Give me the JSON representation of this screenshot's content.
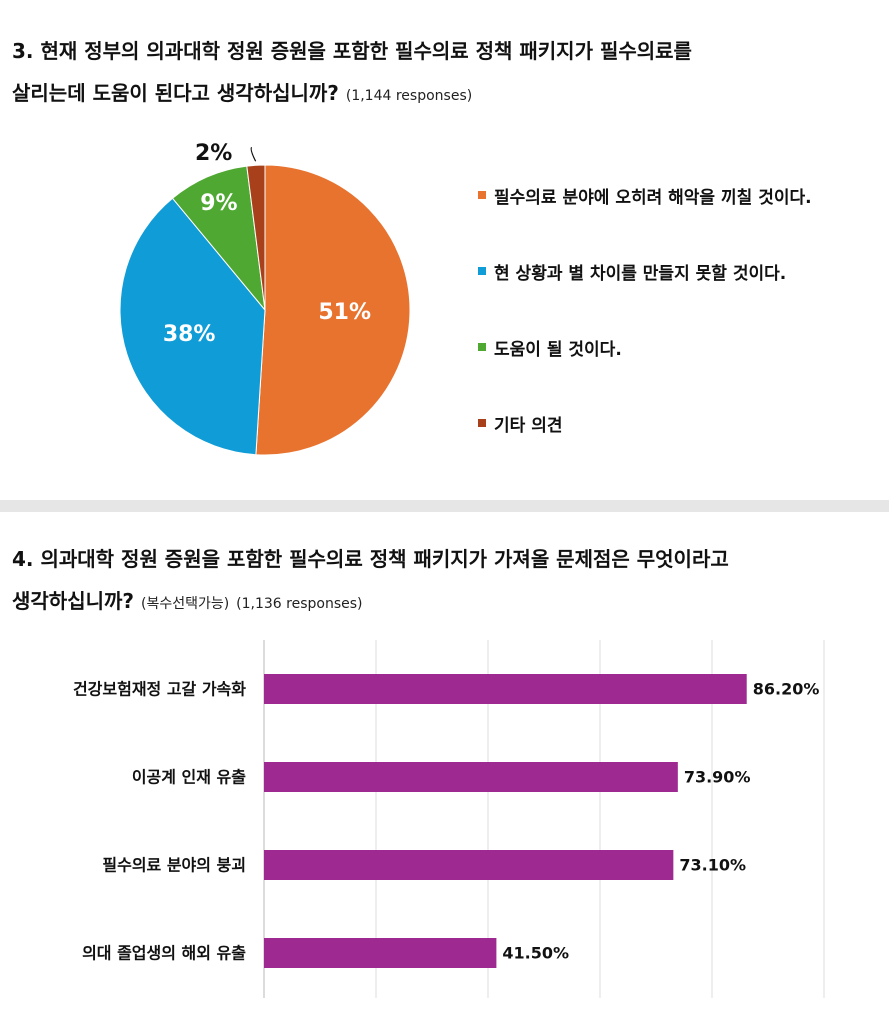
{
  "q3": {
    "title_line1": "3. 현재 정부의 의과대학 정원 증원을 포함한 필수의료 정책 패키지가 필수의료를",
    "title_line2": "살리는데 도움이 된다고 생각하십니까?",
    "responses": "(1,144 responses)"
  },
  "q4": {
    "title_line1": "4. 의과대학 정원 증원을 포함한 필수의료 정책 패키지가 가져올 문제점은 무엇이라고",
    "title_line2": "생각하십니까?",
    "note": "(복수선택가능)",
    "responses": "(1,136 responses)"
  },
  "chart_data": [
    {
      "type": "pie",
      "labels": [
        "필수의료 분야에 오히려 해악을 끼칠 것이다.",
        "현 상황과 별 차이를 만들지 못할 것이다.",
        "도움이 될 것이다.",
        "기타 의견"
      ],
      "values": [
        51,
        38,
        9,
        2
      ],
      "value_labels": [
        "51%",
        "38%",
        "9%",
        "2%"
      ],
      "colors": [
        "#E8732F",
        "#109CD6",
        "#4FA832",
        "#A8401C"
      ],
      "legend_position": "right"
    },
    {
      "type": "bar",
      "orientation": "horizontal",
      "categories": [
        "건강보험재정 고갈 가속화",
        "이공계 인재 유출",
        "필수의료 분야의 붕괴",
        "의대 졸업생의 해외 유출"
      ],
      "values": [
        86.2,
        73.9,
        73.1,
        41.5
      ],
      "value_labels": [
        "86.20%",
        "73.90%",
        "73.10%",
        "41.50%"
      ],
      "color": "#9E2A91",
      "grid": true
    }
  ]
}
